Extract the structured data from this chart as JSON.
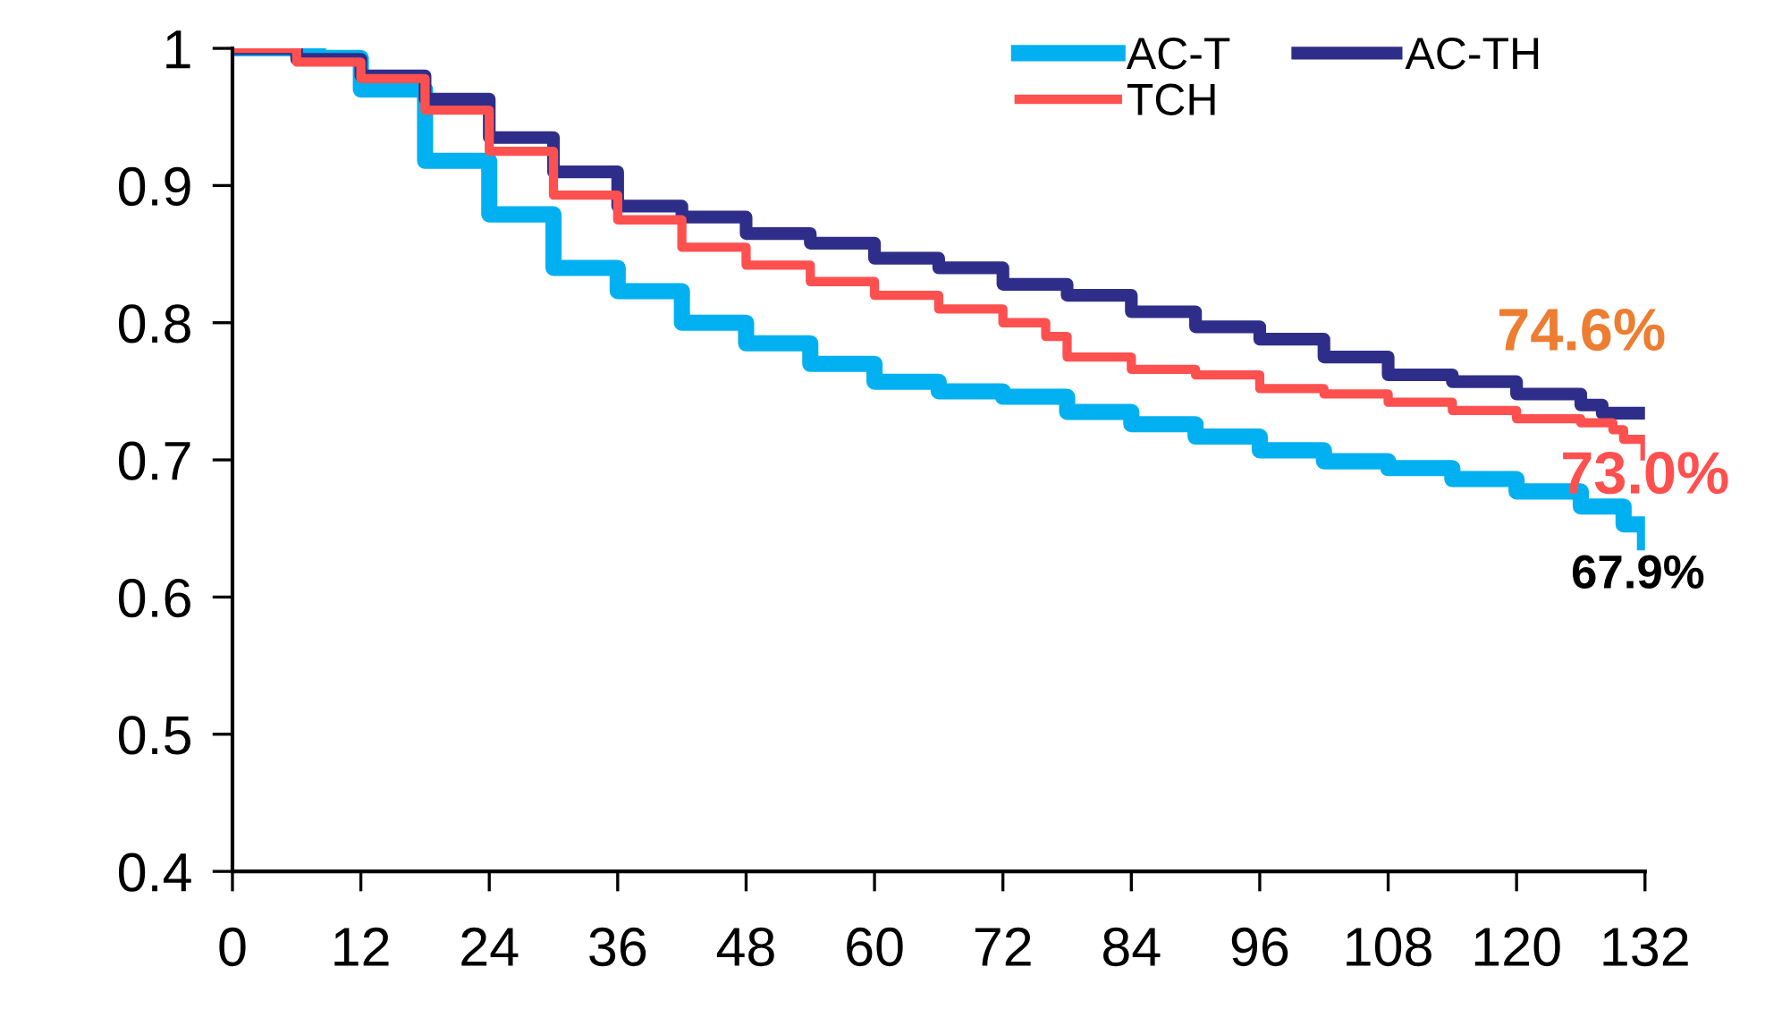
{
  "chart_data": {
    "type": "step",
    "xlim": [
      0,
      132
    ],
    "xticks": [
      0,
      12,
      24,
      36,
      48,
      60,
      72,
      84,
      96,
      108,
      120,
      132
    ],
    "ylim": [
      0.4,
      1
    ],
    "yticks": [
      0.4,
      0.5,
      0.6,
      0.7,
      0.8,
      0.9,
      1
    ],
    "grid": false,
    "legend": "top right",
    "marker": "none",
    "line_style": "solid",
    "series": [
      {
        "name": "AC-T",
        "color": "#00b0f0",
        "x": [
          0,
          8,
          12,
          18,
          24,
          30,
          36,
          42,
          48,
          54,
          60,
          66,
          72,
          78,
          84,
          90,
          96,
          102,
          108,
          114,
          120,
          126,
          130,
          132
        ],
        "values": [
          1,
          0.993,
          0.97,
          0.918,
          0.879,
          0.84,
          0.823,
          0.8,
          0.785,
          0.77,
          0.757,
          0.75,
          0.746,
          0.735,
          0.726,
          0.717,
          0.707,
          0.699,
          0.694,
          0.686,
          0.677,
          0.666,
          0.653,
          0.64
        ]
      },
      {
        "name": "AC-TH",
        "color": "#2e2e8a",
        "x": [
          0,
          6,
          12,
          18,
          24,
          30,
          36,
          42,
          48,
          54,
          60,
          66,
          72,
          78,
          84,
          90,
          96,
          102,
          108,
          114,
          120,
          126,
          128,
          132
        ],
        "values": [
          1,
          0.992,
          0.98,
          0.963,
          0.935,
          0.91,
          0.885,
          0.877,
          0.865,
          0.858,
          0.847,
          0.84,
          0.828,
          0.82,
          0.808,
          0.797,
          0.788,
          0.775,
          0.762,
          0.757,
          0.748,
          0.74,
          0.734,
          0.734
        ]
      },
      {
        "name": "TCH",
        "color": "#ff5050",
        "x": [
          0,
          6,
          12,
          18,
          24,
          30,
          36,
          42,
          48,
          54,
          60,
          66,
          72,
          76,
          78,
          84,
          90,
          96,
          102,
          108,
          114,
          120,
          126,
          129,
          130,
          132
        ],
        "values": [
          1,
          0.99,
          0.978,
          0.955,
          0.925,
          0.893,
          0.875,
          0.855,
          0.842,
          0.83,
          0.82,
          0.81,
          0.8,
          0.79,
          0.775,
          0.766,
          0.762,
          0.752,
          0.748,
          0.742,
          0.736,
          0.73,
          0.727,
          0.722,
          0.715,
          0.703
        ]
      }
    ],
    "annotations": [
      "74.6%",
      "73.0%",
      "67.9%"
    ]
  }
}
